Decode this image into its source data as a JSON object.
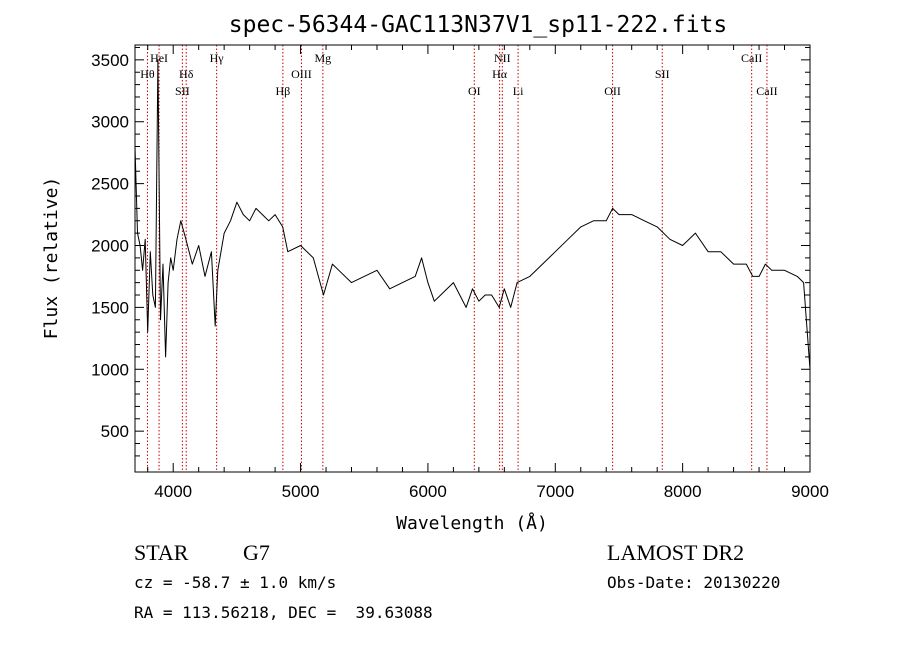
{
  "chart_data": {
    "type": "line",
    "title": "spec-56344-GAC113N37V1_sp11-222.fits",
    "xlabel": "Wavelength (Å)",
    "ylabel": "Flux (relative)",
    "xlim": [
      3700,
      9000
    ],
    "ylim": [
      170,
      3620
    ],
    "xticks": [
      4000,
      5000,
      6000,
      7000,
      8000,
      9000
    ],
    "yticks": [
      500,
      1000,
      1500,
      2000,
      2500,
      3000,
      3500
    ],
    "grid": false,
    "colors": {
      "spectrum": "#000000",
      "line_markers": "#cc0000",
      "axes": "#000000"
    },
    "series": [
      {
        "x": [
          3700,
          3720,
          3740,
          3760,
          3780,
          3800,
          3820,
          3840,
          3860,
          3880,
          3900,
          3920,
          3940,
          3960,
          3980,
          4000,
          4030,
          4060,
          4100,
          4150,
          4200,
          4250,
          4300,
          4330,
          4350,
          4400,
          4450,
          4500,
          4550,
          4600,
          4650,
          4700,
          4750,
          4800,
          4860,
          4900,
          5000,
          5100,
          5180,
          5250,
          5300,
          5400,
          5500,
          5600,
          5700,
          5800,
          5900,
          5950,
          6000,
          6050,
          6100,
          6200,
          6300,
          6350,
          6400,
          6450,
          6500,
          6560,
          6600,
          6650,
          6700,
          6800,
          6900,
          7000,
          7100,
          7200,
          7300,
          7400,
          7450,
          7500,
          7600,
          7700,
          7800,
          7900,
          8000,
          8100,
          8200,
          8300,
          8400,
          8500,
          8550,
          8600,
          8650,
          8700,
          8800,
          8900,
          8950,
          9000
        ],
        "y": [
          2800,
          2100,
          2000,
          1800,
          2050,
          1300,
          1950,
          1600,
          1500,
          3500,
          1400,
          1850,
          1100,
          1700,
          1900,
          1800,
          2050,
          2200,
          2050,
          1850,
          2000,
          1750,
          1950,
          1350,
          1800,
          2100,
          2200,
          2350,
          2250,
          2200,
          2300,
          2250,
          2200,
          2250,
          2150,
          1950,
          2000,
          1900,
          1600,
          1850,
          1800,
          1700,
          1750,
          1800,
          1650,
          1700,
          1750,
          1900,
          1700,
          1550,
          1600,
          1700,
          1500,
          1650,
          1550,
          1600,
          1600,
          1500,
          1650,
          1500,
          1700,
          1750,
          1850,
          1950,
          2050,
          2150,
          2200,
          2200,
          2300,
          2250,
          2250,
          2200,
          2150,
          2050,
          2000,
          2100,
          1950,
          1950,
          1850,
          1850,
          1750,
          1750,
          1850,
          1800,
          1800,
          1750,
          1700,
          1000
        ]
      }
    ],
    "annotations": [
      {
        "label": "Hθ",
        "x": 3798,
        "row": 2
      },
      {
        "label": "HeI",
        "x": 3889,
        "row": 1
      },
      {
        "label": "Hδ",
        "x": 4102,
        "row": 2
      },
      {
        "label": "SII",
        "x": 4072,
        "row": 3
      },
      {
        "label": "Hγ",
        "x": 4341,
        "row": 1
      },
      {
        "label": "Hβ",
        "x": 4861,
        "row": 3
      },
      {
        "label": "OIII",
        "x": 5007,
        "row": 2
      },
      {
        "label": "Mg",
        "x": 5175,
        "row": 1
      },
      {
        "label": "OI",
        "x": 6364,
        "row": 3
      },
      {
        "label": "NII",
        "x": 6584,
        "row": 1
      },
      {
        "label": "Hα",
        "x": 6563,
        "row": 2
      },
      {
        "label": "Li",
        "x": 6708,
        "row": 3
      },
      {
        "label": "OII",
        "x": 7450,
        "row": 3
      },
      {
        "label": "SII",
        "x": 7840,
        "row": 2
      },
      {
        "label": "CaII",
        "x": 8542,
        "row": 1
      },
      {
        "label": "CaII",
        "x": 8662,
        "row": 3
      }
    ]
  },
  "info": {
    "object_class": "STAR",
    "subclass": "G7",
    "survey": "LAMOST DR2",
    "cz": "cz = -58.7 ± 1.0 km/s",
    "obs_date": "Obs-Date: 20130220",
    "coords": "RA = 113.56218, DEC =  39.63088"
  }
}
